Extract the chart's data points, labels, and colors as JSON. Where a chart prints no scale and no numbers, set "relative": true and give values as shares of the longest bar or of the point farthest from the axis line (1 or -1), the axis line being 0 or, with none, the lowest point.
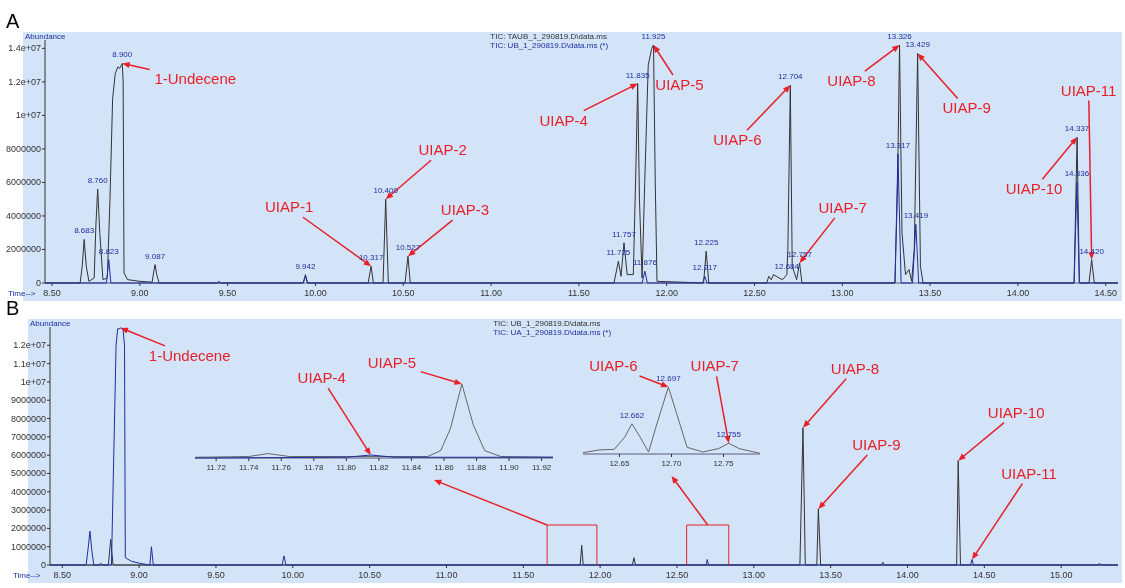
{
  "chart_data": [
    {
      "type": "line",
      "title": "A",
      "xlabel": "Time-->",
      "ylabel": "Abundance",
      "legend": "top",
      "xlim": [
        8.46,
        14.57
      ],
      "ylim": [
        0,
        14500000
      ],
      "xticks": [
        {
          "value": 8.5,
          "label": "8.50"
        },
        {
          "value": 9,
          "label": "9.00"
        },
        {
          "value": 9.5,
          "label": "9.50"
        },
        {
          "value": 10,
          "label": "10.00"
        },
        {
          "value": 10.5,
          "label": "10.50"
        },
        {
          "value": 11,
          "label": "11.00"
        },
        {
          "value": 11.5,
          "label": "11.50"
        },
        {
          "value": 12,
          "label": "12.00"
        },
        {
          "value": 12.5,
          "label": "12.50"
        },
        {
          "value": 13,
          "label": "13.00"
        },
        {
          "value": 13.5,
          "label": "13.50"
        },
        {
          "value": 14,
          "label": "14.00"
        },
        {
          "value": 14.5,
          "label": "14.50"
        }
      ],
      "yticks": [
        0,
        2000000,
        4000000,
        6000000,
        8000000,
        {
          "value": 10000000,
          "label": "1e+07"
        },
        {
          "value": 12000000,
          "label": "1.2e+07"
        },
        {
          "value": 14000000,
          "label": "1.4e+07"
        }
      ],
      "series": [
        {
          "name": "TIC: TAUB_1_290819.D\\data.ms",
          "color": "#333333",
          "x": [
            8.46,
            8.66,
            8.672,
            8.683,
            8.695,
            8.71,
            8.74,
            8.75,
            8.76,
            8.772,
            8.79,
            8.815,
            8.83,
            8.845,
            8.86,
            8.875,
            8.885,
            8.9,
            8.905,
            8.91,
            8.93,
            9,
            9.07,
            9.078,
            9.087,
            9.096,
            9.11,
            9.93,
            9.943,
            9.955,
            10.3,
            10.317,
            10.33,
            10.385,
            10.4,
            10.415,
            10.51,
            10.527,
            10.54,
            11.7,
            11.725,
            11.74,
            11.757,
            11.775,
            11.81,
            11.825,
            11.835,
            11.845,
            11.86,
            11.875,
            11.895,
            11.915,
            11.925,
            11.935,
            11.945,
            12.21,
            12.225,
            12.24,
            12.57,
            12.581,
            12.595,
            12.608,
            12.64,
            12.66,
            12.684,
            12.69,
            12.704,
            12.715,
            12.74,
            12.757,
            12.77,
            13.3,
            13.315,
            13.326,
            13.34,
            13.36,
            13.38,
            13.395,
            13.41,
            13.429,
            13.445,
            13.46,
            14.32,
            14.337,
            14.35,
            14.405,
            14.42,
            14.435,
            14.57
          ],
          "values": [
            0,
            0,
            1000000,
            2600000,
            1000000,
            100000,
            300000,
            3500000,
            5600000,
            3000000,
            200000,
            300000,
            5000000,
            11000000,
            12500000,
            12900000,
            12800000,
            13100000,
            12000000,
            600000,
            200000,
            100000,
            50000,
            600000,
            1100000,
            500000,
            0,
            0,
            500000,
            0,
            0,
            1000000,
            0,
            0,
            5000000,
            0,
            0,
            1600000,
            0,
            0,
            1300000,
            400000,
            2400000,
            500000,
            500000,
            7000000,
            11900000,
            5000000,
            300000,
            6000000,
            13000000,
            14000000,
            14200000,
            6000000,
            100000,
            0,
            1900000,
            0,
            0,
            400000,
            200000,
            500000,
            300000,
            200000,
            500000,
            2000000,
            11800000,
            1000000,
            200000,
            1200000,
            0,
            0,
            6000000,
            14200000,
            3000000,
            500000,
            800000,
            100000,
            2000000,
            13700000,
            1000000,
            0,
            0,
            8700000,
            0,
            0,
            1400000,
            0,
            0
          ]
        },
        {
          "name": "TIC: UB_1_290819.D\\data.ms (*)",
          "color": "#1f2f9f",
          "x": [
            8.46,
            8.81,
            8.823,
            8.835,
            9.44,
            9.45,
            9.46,
            9.93,
            9.944,
            9.955,
            11.86,
            11.876,
            11.89,
            12.205,
            12.217,
            12.23,
            13.3,
            13.317,
            13.335,
            13.4,
            13.419,
            13.435,
            14.32,
            14.336,
            14.35,
            14.57
          ],
          "values": [
            0,
            0,
            1400000,
            0,
            0,
            100000,
            0,
            0,
            400000,
            0,
            0,
            700000,
            0,
            0,
            400000,
            0,
            0,
            7700000,
            0,
            0,
            3500000,
            0,
            0,
            6000000,
            0,
            0
          ]
        }
      ],
      "annotations": [
        {
          "text": "1-Undecene",
          "x": 8.9,
          "y": 13100000
        },
        {
          "text": "UIAP-1",
          "x": 10.317,
          "y": 1000000
        },
        {
          "text": "UIAP-2",
          "x": 10.4,
          "y": 5000000
        },
        {
          "text": "UIAP-3",
          "x": 10.527,
          "y": 1600000
        },
        {
          "text": "UIAP-4",
          "x": 11.835,
          "y": 11900000
        },
        {
          "text": "UIAP-5",
          "x": 11.925,
          "y": 14200000
        },
        {
          "text": "UIAP-6",
          "x": 12.704,
          "y": 11800000
        },
        {
          "text": "UIAP-7",
          "x": 12.757,
          "y": 1200000
        },
        {
          "text": "UIAP-8",
          "x": 13.326,
          "y": 14200000
        },
        {
          "text": "UIAP-9",
          "x": 13.429,
          "y": 13700000
        },
        {
          "text": "UIAP-10",
          "x": 14.337,
          "y": 8700000
        },
        {
          "text": "UIAP-11",
          "x": 14.42,
          "y": 1400000
        },
        {
          "text": "8.683",
          "x": 8.683,
          "y": 2600000
        },
        {
          "text": "8.760",
          "x": 8.76,
          "y": 5600000
        },
        {
          "text": "8.823",
          "x": 8.823,
          "y": 1400000
        },
        {
          "text": "8.900",
          "x": 8.9,
          "y": 13100000
        },
        {
          "text": "9.087",
          "x": 9.087,
          "y": 1100000
        },
        {
          "text": "9.942",
          "x": 9.943,
          "y": 500000
        },
        {
          "text": "10.317",
          "x": 10.317,
          "y": 1000000
        },
        {
          "text": "10.400",
          "x": 10.4,
          "y": 5000000
        },
        {
          "text": "10.527",
          "x": 10.527,
          "y": 1600000
        },
        {
          "text": "11.725",
          "x": 11.725,
          "y": 1300000
        },
        {
          "text": "11.757",
          "x": 11.757,
          "y": 2400000
        },
        {
          "text": "11.835",
          "x": 11.835,
          "y": 11900000
        },
        {
          "text": "11.876",
          "x": 11.876,
          "y": 700000
        },
        {
          "text": "11.925",
          "x": 11.925,
          "y": 14200000
        },
        {
          "text": "12.217",
          "x": 12.217,
          "y": 400000
        },
        {
          "text": "12.225",
          "x": 12.225,
          "y": 1900000
        },
        {
          "text": "12.684",
          "x": 12.684,
          "y": 500000
        },
        {
          "text": "12.704",
          "x": 12.704,
          "y": 11800000
        },
        {
          "text": "12.757",
          "x": 12.757,
          "y": 1200000
        },
        {
          "text": "13.326",
          "x": 13.326,
          "y": 14200000
        },
        {
          "text": "13.317",
          "x": 13.317,
          "y": 7700000
        },
        {
          "text": "13.429",
          "x": 13.429,
          "y": 13700000
        },
        {
          "text": "13.419",
          "x": 13.419,
          "y": 3500000
        },
        {
          "text": "14.337",
          "x": 14.337,
          "y": 8700000
        },
        {
          "text": "14.336",
          "x": 14.336,
          "y": 6000000
        },
        {
          "text": "14.420",
          "x": 14.42,
          "y": 1400000
        }
      ]
    },
    {
      "type": "line",
      "title": "B",
      "xlabel": "Time-->",
      "ylabel": "Abundance",
      "legend": "top",
      "xlim": [
        8.42,
        15.37
      ],
      "ylim": [
        0,
        13000000
      ],
      "xticks": [
        {
          "value": 8.5,
          "label": "8.50"
        },
        {
          "value": 9,
          "label": "9.00"
        },
        {
          "value": 9.5,
          "label": "9.50"
        },
        {
          "value": 10,
          "label": "10.00"
        },
        {
          "value": 10.5,
          "label": "10.50"
        },
        {
          "value": 11,
          "label": "11.00"
        },
        {
          "value": 11.5,
          "label": "11.50"
        },
        {
          "value": 12,
          "label": "12.00"
        },
        {
          "value": 12.5,
          "label": "12.50"
        },
        {
          "value": 13,
          "label": "13.00"
        },
        {
          "value": 13.5,
          "label": "13.50"
        },
        {
          "value": 14,
          "label": "14.00"
        },
        {
          "value": 14.5,
          "label": "14.50"
        },
        {
          "value": 15,
          "label": "15.00"
        }
      ],
      "yticks": [
        0,
        1000000,
        2000000,
        3000000,
        4000000,
        5000000,
        6000000,
        7000000,
        8000000,
        9000000,
        {
          "value": 10000000,
          "label": "1e+07"
        },
        {
          "value": 11000000,
          "label": "1.1e+07"
        },
        {
          "value": 12000000,
          "label": "1.2e+07"
        }
      ],
      "series": [
        {
          "name": "TIC: UB_1_290819.D\\data.ms",
          "color": "#333333",
          "x": [
            8.42,
            8.8,
            8.815,
            8.83,
            11.87,
            11.88,
            11.89,
            12.21,
            12.22,
            12.23,
            13.3,
            13.32,
            13.335,
            13.41,
            13.42,
            13.435,
            14.32,
            14.33,
            14.345,
            15.37
          ],
          "values": [
            0,
            0,
            1400000,
            0,
            0,
            1080000,
            0,
            0,
            400000,
            0,
            0,
            7500000,
            0,
            0,
            3060000,
            0,
            0,
            5700000,
            0,
            0
          ]
        },
        {
          "name": "TIC: UA_1_290819.D\\data.ms (*)",
          "color": "#1f2f9f",
          "x": [
            8.42,
            8.655,
            8.668,
            8.68,
            8.692,
            8.705,
            8.74,
            8.75,
            8.76,
            8.82,
            8.835,
            8.85,
            8.86,
            8.87,
            8.88,
            8.895,
            8.905,
            8.91,
            8.95,
            9,
            9.07,
            9.08,
            9.092,
            9.93,
            9.943,
            9.955,
            12.69,
            12.697,
            12.705,
            13.83,
            13.84,
            13.85,
            14.41,
            14.42,
            14.43,
            15.24,
            15.25,
            15.26,
            15.37
          ],
          "values": [
            0,
            0,
            900000,
            1850000,
            800000,
            0,
            0,
            100000,
            0,
            0,
            6000000,
            12000000,
            12900000,
            12900000,
            12950000,
            12900000,
            12000000,
            400000,
            200000,
            100000,
            0,
            1000000,
            0,
            0,
            500000,
            0,
            0,
            300000,
            0,
            0,
            150000,
            0,
            0,
            300000,
            0,
            0,
            100000,
            0,
            0
          ]
        }
      ],
      "annotations": [
        {
          "text": "1-Undecene",
          "x": 8.88,
          "y": 12950000
        },
        {
          "text": "UIAP-8",
          "x": 13.32,
          "y": 7500000
        },
        {
          "text": "UIAP-9",
          "x": 13.42,
          "y": 3060000
        },
        {
          "text": "UIAP-10",
          "x": 14.33,
          "y": 5700000
        },
        {
          "text": "UIAP-11",
          "x": 14.42,
          "y": 300000
        }
      ]
    },
    {
      "type": "line",
      "relative": true,
      "xlim": [
        11.707,
        11.927
      ],
      "xticks": [
        11.72,
        11.74,
        11.76,
        11.78,
        {
          "value": 11.8,
          "label": "11.80"
        },
        11.82,
        11.84,
        11.86,
        11.88,
        {
          "value": 11.9,
          "label": "11.90"
        },
        11.92
      ],
      "series": [
        {
          "color": "#666666",
          "x": [
            11.707,
            11.74,
            11.752,
            11.765,
            11.85,
            11.858,
            11.864,
            11.871,
            11.878,
            11.885,
            11.895,
            11.927
          ],
          "values": [
            0.01,
            0.02,
            0.06,
            0.02,
            0.02,
            0.1,
            0.4,
            1,
            0.45,
            0.1,
            0.02,
            0.01
          ]
        },
        {
          "color": "#1f2f9f",
          "x": [
            11.707,
            11.8,
            11.815,
            11.83,
            11.927
          ],
          "values": [
            0,
            0.01,
            0.04,
            0.01,
            0.01
          ]
        }
      ],
      "annotations": [
        {
          "text": "UIAP-4",
          "x": 11.815,
          "y": 0.04
        },
        {
          "text": "UIAP-5",
          "x": 11.871,
          "y": 1
        }
      ]
    },
    {
      "type": "line",
      "relative": true,
      "xlim": [
        12.615,
        12.785
      ],
      "xticks": [
        12.65,
        {
          "value": 12.7,
          "label": "12.70"
        },
        12.75
      ],
      "series": [
        {
          "color": "#666666",
          "x": [
            12.615,
            12.63,
            12.645,
            12.655,
            12.662,
            12.67,
            12.678,
            12.685,
            12.697,
            12.705,
            12.715,
            12.73,
            12.745,
            12.755,
            12.765,
            12.785
          ],
          "values": [
            0.02,
            0.06,
            0.07,
            0.25,
            0.45,
            0.25,
            0.03,
            0.4,
            1,
            0.6,
            0.1,
            0.03,
            0.08,
            0.16,
            0.08,
            0.01
          ]
        }
      ],
      "annotations": [
        {
          "text": "UIAP-6",
          "x": 12.697,
          "y": 1
        },
        {
          "text": "UIAP-7",
          "x": 12.755,
          "y": 0.16
        },
        {
          "text": "12.662",
          "x": 12.662,
          "y": 0.45
        },
        {
          "text": "12.697",
          "x": 12.697,
          "y": 1
        },
        {
          "text": "12.755",
          "x": 12.755,
          "y": 0.16
        }
      ]
    }
  ]
}
